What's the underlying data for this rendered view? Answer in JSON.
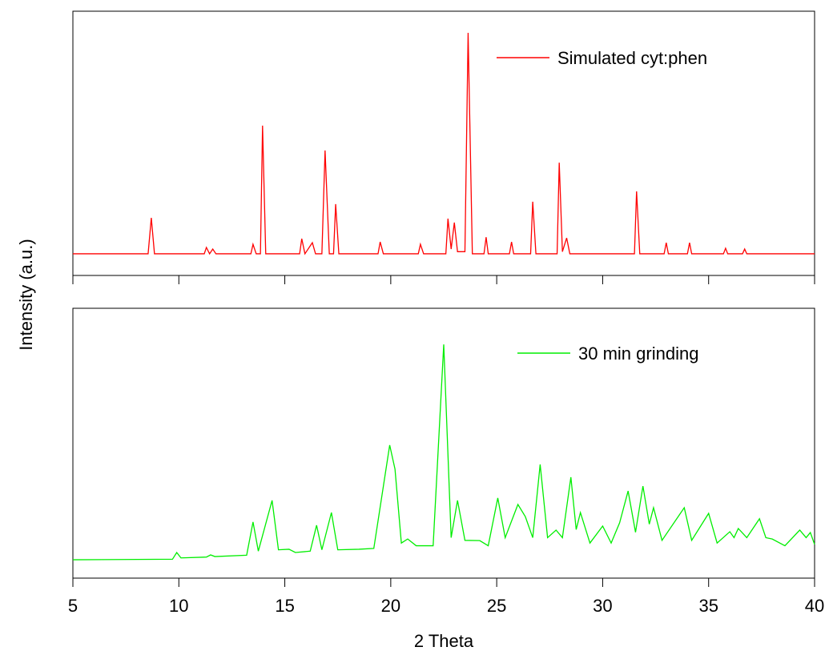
{
  "chart_data": [
    {
      "type": "line",
      "ylabel": "Intensity (a.u.)",
      "xlim": [
        5,
        40
      ],
      "ylim": [
        0,
        100
      ],
      "xticks": [
        5,
        10,
        15,
        20,
        25,
        30,
        35,
        40
      ],
      "xtick_labels_shown": false,
      "legend": "upper right",
      "x": [
        5,
        8.55,
        8.7,
        8.85,
        11.2,
        11.3,
        11.45,
        11.6,
        11.75,
        13.4,
        13.5,
        13.65,
        13.85,
        13.95,
        14.1,
        15.7,
        15.8,
        15.95,
        16.3,
        16.45,
        16.75,
        16.9,
        17.1,
        17.3,
        17.4,
        17.55,
        19.4,
        19.5,
        19.65,
        21.3,
        21.4,
        21.55,
        22.6,
        22.7,
        22.85,
        23.0,
        23.15,
        23.5,
        23.65,
        23.85,
        24.4,
        24.5,
        24.6,
        25.6,
        25.7,
        25.8,
        26.6,
        26.7,
        26.85,
        27.85,
        27.95,
        28.1,
        28.3,
        28.45,
        31.5,
        31.6,
        31.75,
        32.9,
        33.0,
        33.1,
        34.0,
        34.1,
        34.2,
        35.7,
        35.8,
        35.9,
        36.6,
        36.7,
        36.8,
        40
      ],
      "series": [
        {
          "name": "Simulated cyt:phen",
          "color": "#ff0000",
          "values": [
            8.2,
            8.2,
            21.8,
            8.2,
            8.2,
            10.6,
            8.2,
            10,
            8.2,
            8.2,
            11.8,
            8.2,
            8.2,
            56.7,
            8.2,
            8.2,
            13.9,
            8.2,
            12.4,
            8.2,
            8.2,
            47.3,
            8.2,
            8.2,
            27,
            8.2,
            8.2,
            12.7,
            8.2,
            8.2,
            11.8,
            8.2,
            8.2,
            21.5,
            10,
            20,
            9,
            9,
            91.8,
            8.2,
            8.2,
            14.5,
            8.2,
            8.2,
            12.7,
            8.2,
            8.2,
            27.9,
            8.2,
            8.2,
            42.7,
            9,
            14.2,
            8.2,
            8.2,
            31.8,
            8.2,
            8.2,
            12.4,
            8.2,
            8.2,
            12.4,
            8.2,
            8.2,
            10.3,
            8.2,
            8.2,
            10,
            8.2,
            8.2
          ]
        }
      ]
    },
    {
      "type": "line",
      "xlabel": "2 Theta",
      "xlim": [
        5,
        40
      ],
      "ylim": [
        0,
        100
      ],
      "xticks": [
        5,
        10,
        15,
        20,
        25,
        30,
        35,
        40
      ],
      "xtick_labels_shown": true,
      "legend": "upper right",
      "x": [
        5,
        9.7,
        9.9,
        10.1,
        11.3,
        11.5,
        11.7,
        13.2,
        13.5,
        13.75,
        14.4,
        14.7,
        15.2,
        15.5,
        16.2,
        16.5,
        16.75,
        17.2,
        17.5,
        18.5,
        19.2,
        19.95,
        20.2,
        20.5,
        20.8,
        21.2,
        22.0,
        22.5,
        22.85,
        23.15,
        23.5,
        24.2,
        24.6,
        25.05,
        25.4,
        26.0,
        26.35,
        26.7,
        27.05,
        27.4,
        27.8,
        28.1,
        28.5,
        28.75,
        28.95,
        29.4,
        30.0,
        30.4,
        30.8,
        31.2,
        31.55,
        31.9,
        32.2,
        32.4,
        32.8,
        33.85,
        34.2,
        35.0,
        35.4,
        36.0,
        36.2,
        36.4,
        36.8,
        37.4,
        37.7,
        38.0,
        38.6,
        39.3,
        39.6,
        39.8,
        40
      ],
      "series": [
        {
          "name": "30 min grinding",
          "color": "#00ee00",
          "values": [
            6.8,
            7,
            9.5,
            7.5,
            7.8,
            8.6,
            8,
            8.5,
            20.8,
            10,
            28.8,
            10.5,
            10.7,
            9.5,
            10,
            19.6,
            10.5,
            24.3,
            10.5,
            10.7,
            11,
            49.3,
            40.4,
            13,
            14.5,
            12,
            12,
            86.6,
            15,
            28.8,
            14,
            13.9,
            12,
            29.7,
            15,
            27.3,
            22.8,
            15,
            42.1,
            15,
            17.8,
            15,
            37.4,
            18,
            24.3,
            13,
            19.3,
            13,
            20.5,
            32.3,
            17,
            34.1,
            20,
            26.1,
            14,
            26.1,
            14,
            24,
            13,
            17.2,
            15,
            18.4,
            15,
            22,
            15,
            14.5,
            12,
            17.8,
            15,
            16.9,
            12.5
          ]
        }
      ]
    }
  ]
}
